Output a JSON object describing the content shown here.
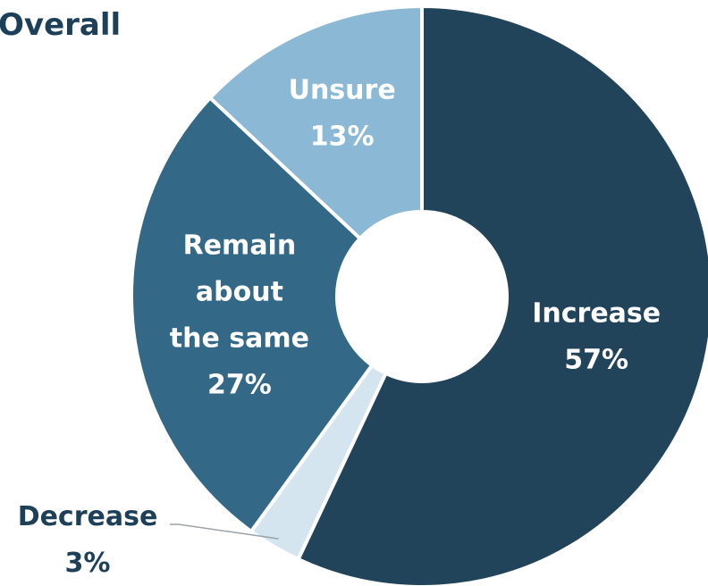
{
  "chart_data": {
    "type": "pie",
    "variant": "donut",
    "title": "Overall",
    "categories": [
      "Increase",
      "Decrease",
      "Remain about the same",
      "Unsure"
    ],
    "values": [
      57,
      3,
      27,
      13
    ],
    "unit": "%",
    "slices": [
      {
        "label": "Increase",
        "value": 57,
        "value_text": "57%",
        "color": "#22445b",
        "text_color": "#ffffff",
        "label_lines": [
          "Increase"
        ]
      },
      {
        "label": "Decrease",
        "value": 3,
        "value_text": "3%",
        "color": "#d4e5ef",
        "text_color": "#1d3f58",
        "label_lines": [
          "Decrease"
        ]
      },
      {
        "label": "Remain about the same",
        "value": 27,
        "value_text": "27%",
        "color": "#336886",
        "text_color": "#ffffff",
        "label_lines": [
          "Remain",
          "about",
          "the same"
        ]
      },
      {
        "label": "Unsure",
        "value": 13,
        "value_text": "13%",
        "color": "#8bb9d5",
        "text_color": "#ffffff",
        "label_lines": [
          "Unsure"
        ]
      }
    ],
    "legend": "none"
  }
}
